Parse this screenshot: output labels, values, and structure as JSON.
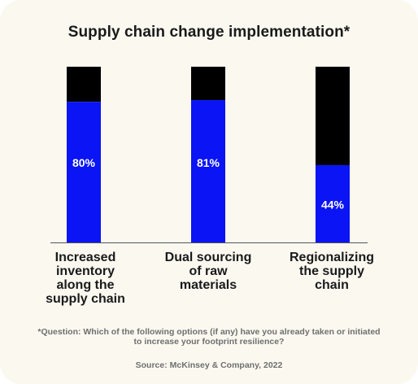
{
  "chart_data": {
    "type": "bar",
    "stacked": true,
    "title": "Supply chain change implementation*",
    "categories": [
      "Increased inventory along the supply chain",
      "Dual sourcing of raw materials",
      "Regionalizing the supply chain"
    ],
    "category_lines": [
      [
        "Increased",
        "inventory",
        "along the",
        "supply chain"
      ],
      [
        "Dual sourcing",
        "of raw",
        "materials"
      ],
      [
        "Regionalizing",
        "the supply",
        "chain"
      ]
    ],
    "values": [
      80,
      81,
      44
    ],
    "value_labels": [
      "80%",
      "81%",
      "44%"
    ],
    "ylim": [
      0,
      100
    ],
    "grid": false,
    "colors": {
      "implemented": "#0a14f5",
      "remainder": "#000000",
      "value_label": "#ffffff"
    }
  },
  "footnote": "*Question: Which of the following options (if any) have you already taken or initiated to increase your footprint resilience?",
  "source": "Source: McKinsey & Company, 2022"
}
